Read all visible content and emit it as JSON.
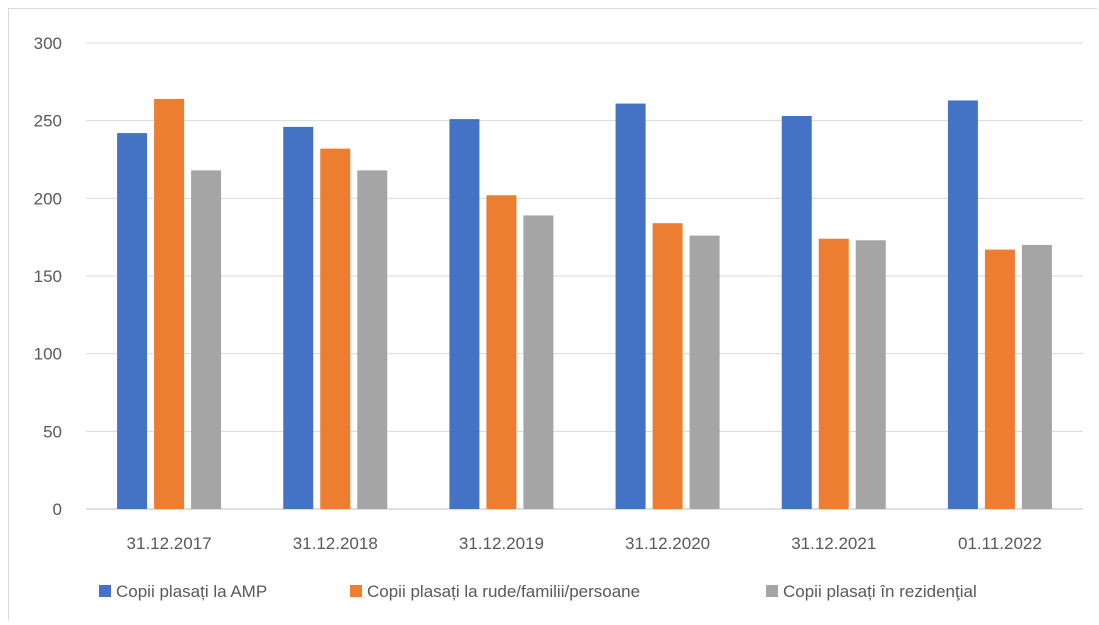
{
  "chart_data": {
    "type": "bar",
    "title": "",
    "xlabel": "",
    "ylabel": "",
    "categories": [
      "31.12.2017",
      "31.12.2018",
      "31.12.2019",
      "31.12.2020",
      "31.12.2021",
      "01.11.2022"
    ],
    "series": [
      {
        "name": "Copii plasați la  AMP",
        "color": "#4472c4",
        "values": [
          242,
          246,
          251,
          261,
          253,
          263
        ]
      },
      {
        "name": "Copii  plasați la rude/familii/persoane",
        "color": "#ed7d31",
        "values": [
          264,
          232,
          202,
          184,
          174,
          167
        ]
      },
      {
        "name": "Copii plasați în rezidenţial",
        "color": "#a5a5a5",
        "values": [
          218,
          218,
          189,
          176,
          173,
          170
        ]
      }
    ],
    "ylim": [
      0,
      300
    ],
    "yticks": [
      0,
      50,
      100,
      150,
      200,
      250,
      300
    ],
    "grid": true,
    "legend_position": "bottom"
  }
}
